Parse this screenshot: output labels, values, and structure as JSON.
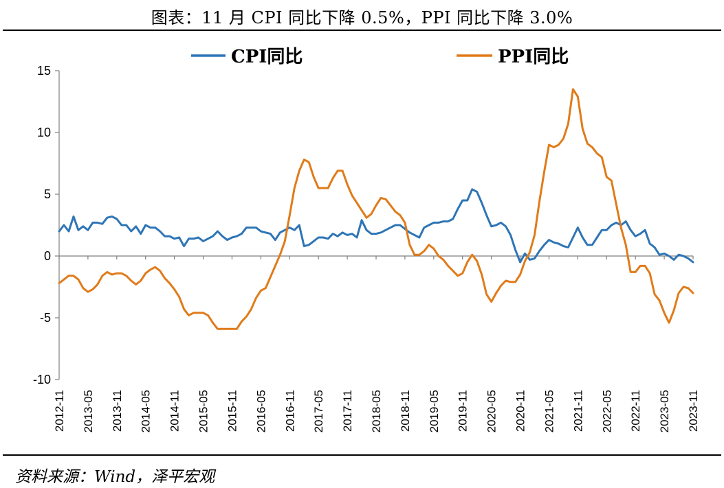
{
  "figure": {
    "title": "图表：11 月 CPI 同比下降 0.5%，PPI 同比下降 3.0%",
    "source": "资料来源：Wind，泽平宏观"
  },
  "chart_data": {
    "type": "line",
    "xlabel": "",
    "ylabel": "",
    "ylim": [
      -10,
      15
    ],
    "yticks": [
      -10,
      -5,
      0,
      5,
      10,
      15
    ],
    "xticks": [
      "2012-11",
      "2013-05",
      "2013-11",
      "2014-05",
      "2014-11",
      "2015-05",
      "2015-11",
      "2016-05",
      "2016-11",
      "2017-05",
      "2017-11",
      "2018-05",
      "2018-11",
      "2019-05",
      "2019-11",
      "2020-05",
      "2020-11",
      "2021-05",
      "2021-11",
      "2022-05",
      "2022-11",
      "2023-05",
      "2023-11"
    ],
    "legend_position": "top",
    "grid": false,
    "x": [
      "2012-11",
      "2012-12",
      "2013-01",
      "2013-02",
      "2013-03",
      "2013-04",
      "2013-05",
      "2013-06",
      "2013-07",
      "2013-08",
      "2013-09",
      "2013-10",
      "2013-11",
      "2013-12",
      "2014-01",
      "2014-02",
      "2014-03",
      "2014-04",
      "2014-05",
      "2014-06",
      "2014-07",
      "2014-08",
      "2014-09",
      "2014-10",
      "2014-11",
      "2014-12",
      "2015-01",
      "2015-02",
      "2015-03",
      "2015-04",
      "2015-05",
      "2015-06",
      "2015-07",
      "2015-08",
      "2015-09",
      "2015-10",
      "2015-11",
      "2015-12",
      "2016-01",
      "2016-02",
      "2016-03",
      "2016-04",
      "2016-05",
      "2016-06",
      "2016-07",
      "2016-08",
      "2016-09",
      "2016-10",
      "2016-11",
      "2016-12",
      "2017-01",
      "2017-02",
      "2017-03",
      "2017-04",
      "2017-05",
      "2017-06",
      "2017-07",
      "2017-08",
      "2017-09",
      "2017-10",
      "2017-11",
      "2017-12",
      "2018-01",
      "2018-02",
      "2018-03",
      "2018-04",
      "2018-05",
      "2018-06",
      "2018-07",
      "2018-08",
      "2018-09",
      "2018-10",
      "2018-11",
      "2018-12",
      "2019-01",
      "2019-02",
      "2019-03",
      "2019-04",
      "2019-05",
      "2019-06",
      "2019-07",
      "2019-08",
      "2019-09",
      "2019-10",
      "2019-11",
      "2019-12",
      "2020-01",
      "2020-02",
      "2020-03",
      "2020-04",
      "2020-05",
      "2020-06",
      "2020-07",
      "2020-08",
      "2020-09",
      "2020-10",
      "2020-11",
      "2020-12",
      "2021-01",
      "2021-02",
      "2021-03",
      "2021-04",
      "2021-05",
      "2021-06",
      "2021-07",
      "2021-08",
      "2021-09",
      "2021-10",
      "2021-11",
      "2021-12",
      "2022-01",
      "2022-02",
      "2022-03",
      "2022-04",
      "2022-05",
      "2022-06",
      "2022-07",
      "2022-08",
      "2022-09",
      "2022-10",
      "2022-11",
      "2022-12",
      "2023-01",
      "2023-02",
      "2023-03",
      "2023-04",
      "2023-05",
      "2023-06",
      "2023-07",
      "2023-08",
      "2023-09",
      "2023-10",
      "2023-11"
    ],
    "series": [
      {
        "name": "CPI同比",
        "color": "#2E75B6",
        "values": [
          2.0,
          2.5,
          2.0,
          3.2,
          2.1,
          2.4,
          2.1,
          2.7,
          2.7,
          2.6,
          3.1,
          3.2,
          3.0,
          2.5,
          2.5,
          2.0,
          2.4,
          1.8,
          2.5,
          2.3,
          2.3,
          2.0,
          1.6,
          1.6,
          1.4,
          1.5,
          0.8,
          1.4,
          1.4,
          1.5,
          1.2,
          1.4,
          1.6,
          2.0,
          1.6,
          1.3,
          1.5,
          1.6,
          1.8,
          2.3,
          2.3,
          2.3,
          2.0,
          1.9,
          1.8,
          1.3,
          1.9,
          2.1,
          2.3,
          2.1,
          2.5,
          0.8,
          0.9,
          1.2,
          1.5,
          1.5,
          1.4,
          1.8,
          1.6,
          1.9,
          1.7,
          1.8,
          1.5,
          2.9,
          2.1,
          1.8,
          1.8,
          1.9,
          2.1,
          2.3,
          2.5,
          2.5,
          2.2,
          1.9,
          1.7,
          1.5,
          2.3,
          2.5,
          2.7,
          2.7,
          2.8,
          2.8,
          3.0,
          3.8,
          4.5,
          4.5,
          5.4,
          5.2,
          4.3,
          3.3,
          2.4,
          2.5,
          2.7,
          2.4,
          1.7,
          0.5,
          -0.5,
          0.2,
          -0.3,
          -0.2,
          0.4,
          0.9,
          1.3,
          1.1,
          1.0,
          0.8,
          0.7,
          1.5,
          2.3,
          1.5,
          0.9,
          0.9,
          1.5,
          2.1,
          2.1,
          2.5,
          2.7,
          2.5,
          2.8,
          2.1,
          1.6,
          1.8,
          2.1,
          1.0,
          0.7,
          0.1,
          0.2,
          0.0,
          -0.3,
          0.1,
          0.0,
          -0.2,
          -0.5
        ]
      },
      {
        "name": "PPI同比",
        "color": "#E07B1A",
        "values": [
          -2.2,
          -1.9,
          -1.6,
          -1.6,
          -1.9,
          -2.6,
          -2.9,
          -2.7,
          -2.3,
          -1.6,
          -1.3,
          -1.5,
          -1.4,
          -1.4,
          -1.6,
          -2.0,
          -2.3,
          -2.0,
          -1.4,
          -1.1,
          -0.9,
          -1.2,
          -1.8,
          -2.2,
          -2.7,
          -3.3,
          -4.3,
          -4.8,
          -4.6,
          -4.6,
          -4.6,
          -4.8,
          -5.4,
          -5.9,
          -5.9,
          -5.9,
          -5.9,
          -5.9,
          -5.3,
          -4.9,
          -4.3,
          -3.4,
          -2.8,
          -2.6,
          -1.7,
          -0.8,
          0.1,
          1.2,
          3.3,
          5.5,
          6.9,
          7.8,
          7.6,
          6.4,
          5.5,
          5.5,
          5.5,
          6.3,
          6.9,
          6.9,
          5.8,
          4.9,
          4.3,
          3.7,
          3.1,
          3.4,
          4.1,
          4.7,
          4.6,
          4.1,
          3.6,
          3.3,
          2.7,
          0.9,
          0.1,
          0.1,
          0.4,
          0.9,
          0.6,
          0.0,
          -0.3,
          -0.8,
          -1.2,
          -1.6,
          -1.4,
          -0.5,
          0.1,
          -0.4,
          -1.5,
          -3.1,
          -3.7,
          -3.0,
          -2.4,
          -2.0,
          -2.1,
          -2.1,
          -1.5,
          -0.4,
          0.3,
          1.7,
          4.4,
          6.8,
          9.0,
          8.8,
          9.0,
          9.5,
          10.7,
          13.5,
          12.9,
          10.3,
          9.1,
          8.8,
          8.3,
          8.0,
          6.4,
          6.1,
          4.2,
          2.3,
          0.9,
          -1.3,
          -1.3,
          -0.8,
          -0.8,
          -1.4,
          -3.1,
          -3.6,
          -4.6,
          -5.4,
          -4.4,
          -3.0,
          -2.5,
          -2.6,
          -3.0
        ]
      }
    ]
  }
}
